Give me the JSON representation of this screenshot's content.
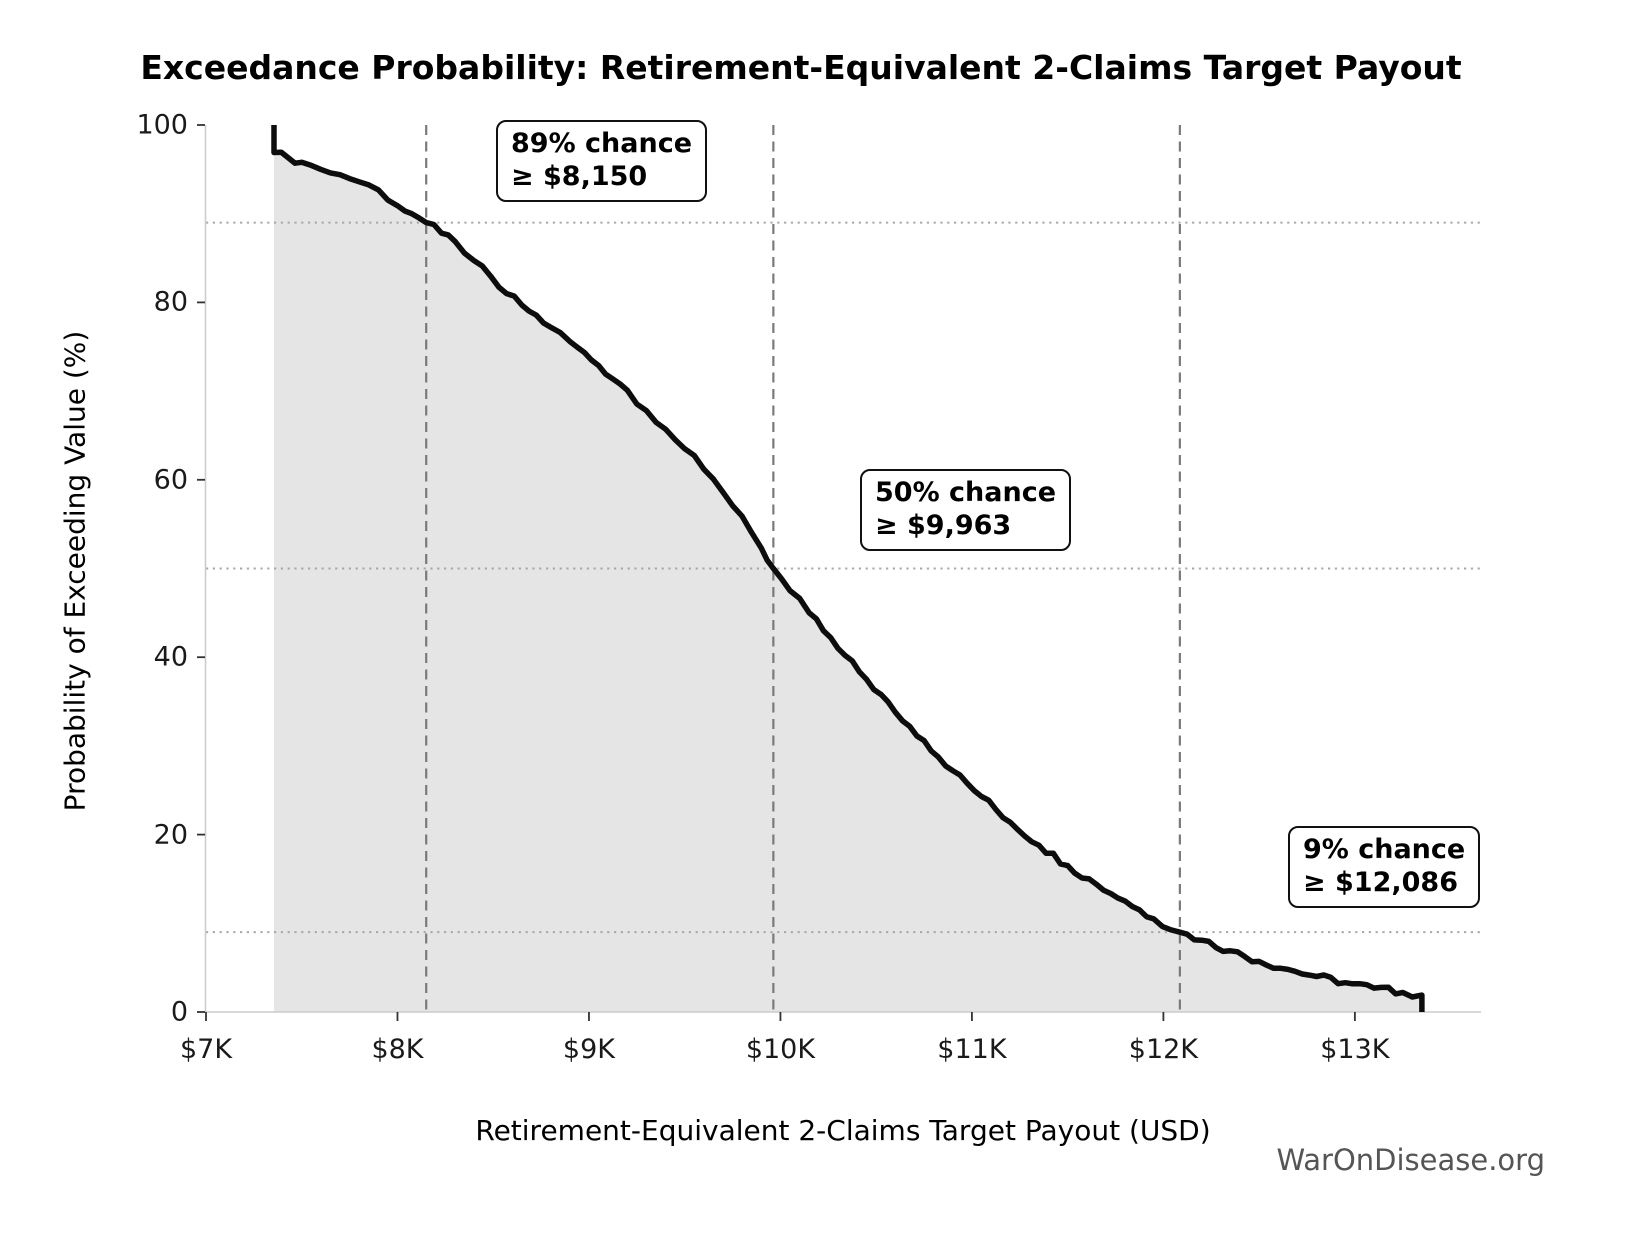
{
  "figure": {
    "title": "Exceedance Probability: Retirement-Equivalent 2-Claims Target Payout",
    "watermark": "WarOnDisease.org"
  },
  "chart_data": {
    "type": "line",
    "title": "Exceedance Probability: Retirement-Equivalent 2-Claims Target Payout",
    "xlabel": "Retirement-Equivalent 2-Claims Target Payout (USD)",
    "ylabel": "Probability of Exceeding Value (%)",
    "xlim": [
      7000,
      13650
    ],
    "ylim": [
      0,
      100
    ],
    "grid": "annotation guides only (dashed verticals at annotated values, dotted horizontals at annotated probabilities)",
    "legend": "none",
    "xticks": [
      {
        "label": "$7K",
        "value": 7000
      },
      {
        "label": "$8K",
        "value": 8000
      },
      {
        "label": "$9K",
        "value": 9000
      },
      {
        "label": "$10K",
        "value": 10000
      },
      {
        "label": "$11K",
        "value": 11000
      },
      {
        "label": "$12K",
        "value": 12000
      },
      {
        "label": "$13K",
        "value": 13000
      }
    ],
    "yticks": [
      {
        "label": "0",
        "value": 0
      },
      {
        "label": "20",
        "value": 20
      },
      {
        "label": "40",
        "value": 40
      },
      {
        "label": "60",
        "value": 60
      },
      {
        "label": "80",
        "value": 80
      },
      {
        "label": "100",
        "value": 100
      }
    ],
    "annotations": [
      {
        "line1": "89% chance",
        "line2": "≥ $8,150",
        "pct": 89,
        "value": 8150
      },
      {
        "line1": "50% chance",
        "line2": "≥ $9,963",
        "pct": 50,
        "value": 9963
      },
      {
        "line1": "9% chance",
        "line2": "≥ $12,086",
        "pct": 9,
        "value": 12086
      }
    ],
    "colors": {
      "curve": "#0d0d0d",
      "fill": "rgba(0,0,0,0.10)",
      "dashed_guide": "#7a7a7a",
      "dotted_guide": "#a8a8a8",
      "spine": "#cccccc",
      "tick": "#333333",
      "watermark": "#555555"
    },
    "curve": [
      [
        7355,
        100.0
      ],
      [
        7355,
        96.9
      ],
      [
        7430,
        96.3
      ],
      [
        7500,
        95.8
      ],
      [
        7600,
        95.0
      ],
      [
        7700,
        94.4
      ],
      [
        7800,
        93.6
      ],
      [
        7900,
        92.7
      ],
      [
        8000,
        90.9
      ],
      [
        8075,
        90.0
      ],
      [
        8150,
        89.0
      ],
      [
        8230,
        87.8
      ],
      [
        8300,
        86.9
      ],
      [
        8400,
        84.7
      ],
      [
        8530,
        81.7
      ],
      [
        8650,
        79.7
      ],
      [
        8800,
        77.2
      ],
      [
        8900,
        75.6
      ],
      [
        9050,
        72.9
      ],
      [
        9200,
        70.1
      ],
      [
        9300,
        67.8
      ],
      [
        9400,
        65.7
      ],
      [
        9500,
        63.5
      ],
      [
        9600,
        61.2
      ],
      [
        9700,
        58.6
      ],
      [
        9800,
        55.9
      ],
      [
        9900,
        52.3
      ],
      [
        9963,
        50.0
      ],
      [
        10050,
        47.5
      ],
      [
        10150,
        45.0
      ],
      [
        10300,
        41.0
      ],
      [
        10450,
        37.5
      ],
      [
        10600,
        33.8
      ],
      [
        10750,
        30.6
      ],
      [
        10900,
        27.2
      ],
      [
        11050,
        24.3
      ],
      [
        11200,
        21.4
      ],
      [
        11350,
        18.8
      ],
      [
        11500,
        16.5
      ],
      [
        11650,
        14.4
      ],
      [
        11800,
        12.5
      ],
      [
        11950,
        10.5
      ],
      [
        12086,
        9.0
      ],
      [
        12200,
        8.1
      ],
      [
        12350,
        6.9
      ],
      [
        12500,
        5.7
      ],
      [
        12650,
        4.8
      ],
      [
        12800,
        4.0
      ],
      [
        12950,
        3.3
      ],
      [
        13100,
        2.7
      ],
      [
        13250,
        2.2
      ],
      [
        13350,
        1.9
      ],
      [
        13350,
        0.0
      ]
    ]
  }
}
